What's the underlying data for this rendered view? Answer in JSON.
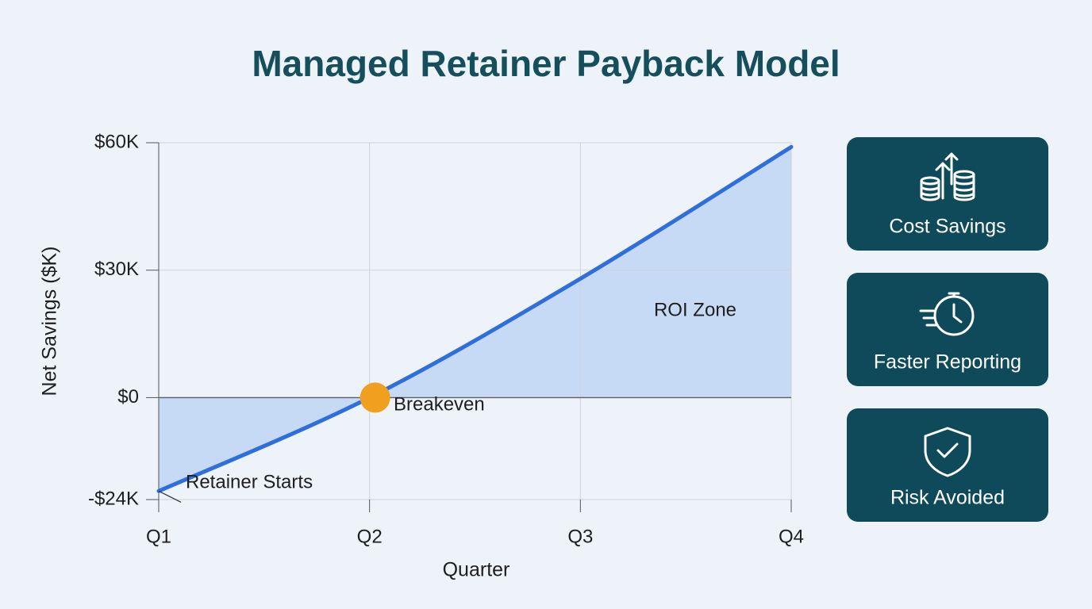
{
  "chart_data": {
    "type": "line",
    "title": "Managed Retainer Payback Model",
    "x_label": "Quarter",
    "y_label": "Net Savings ($K)",
    "categories": [
      "Q1",
      "Q2",
      "Q3",
      "Q4"
    ],
    "series": [
      {
        "name": "Net Savings",
        "color": "#2f6fdc",
        "values": [
          -22,
          0,
          28,
          59
        ]
      }
    ],
    "area_color": "#c6d9f5",
    "ylim": [
      -24,
      60
    ],
    "yticks": [
      {
        "value": -24,
        "label": "-$24K"
      },
      {
        "value": 0,
        "label": "$0"
      },
      {
        "value": 30,
        "label": "$30K"
      },
      {
        "value": 60,
        "label": "$60K"
      }
    ],
    "grid": true,
    "annotations": [
      "Retainer Starts",
      "Breakeven",
      "ROI Zone"
    ],
    "marker_color": "#f0a01e"
  },
  "panels": [
    "Cost Savings",
    "Faster Reporting",
    "Risk Avoided"
  ]
}
